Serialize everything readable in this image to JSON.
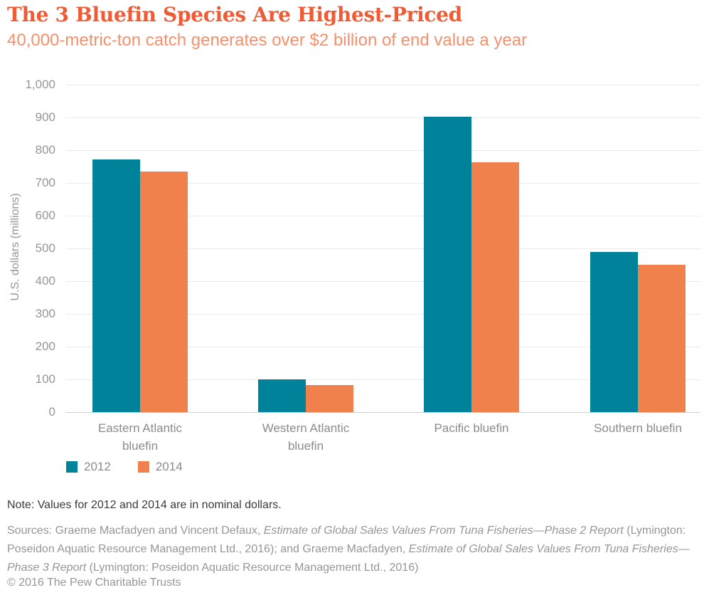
{
  "header": {
    "title": "The 3 Bluefin Species Are Highest-Priced",
    "subtitle": "40,000-metric-ton catch generates over $2 billion of end value a year"
  },
  "chart_data": {
    "type": "bar",
    "title": "The 3 Bluefin Species Are Highest-Priced",
    "subtitle": "40,000-metric-ton catch generates over $2 billion of end value a year",
    "categories": [
      "Eastern Atlantic bluefin",
      "Western Atlantic bluefin",
      "Pacific bluefin",
      "Southern bluefin"
    ],
    "series": [
      {
        "name": "2012",
        "color": "#00829B",
        "values": [
          772,
          101,
          902,
          490
        ]
      },
      {
        "name": "2014",
        "color": "#F0804C",
        "values": [
          735,
          83,
          763,
          450
        ]
      }
    ],
    "xlabel": "",
    "ylabel": "U.S. dollars (millions)",
    "ylim": [
      0,
      1000
    ],
    "ytick_values": [
      0,
      100,
      200,
      300,
      400,
      500,
      600,
      700,
      800,
      900,
      1000
    ],
    "ytick_labels": [
      "0",
      "100",
      "200",
      "300",
      "400",
      "500",
      "600",
      "700",
      "800",
      "900",
      "1,000"
    ],
    "grid": true,
    "legend_position": "bottom-left"
  },
  "legend": {
    "items": [
      {
        "label": "2012",
        "color": "#00829B"
      },
      {
        "label": "2014",
        "color": "#F0804C"
      }
    ]
  },
  "footer": {
    "note": "Note: Values for 2012 and 2014 are in nominal dollars.",
    "sources_segments": [
      {
        "text": "Sources: Graeme Macfadyen and Vincent Defaux, ",
        "italic": false
      },
      {
        "text": "Estimate of Global Sales Values From Tuna Fisheries—Phase 2 Report",
        "italic": true
      },
      {
        "text": " (Lymington: Poseidon Aquatic Resource Management Ltd., 2016); and Graeme Macfadyen, ",
        "italic": false
      },
      {
        "text": "Estimate of Global Sales Values From Tuna Fisheries—Phase 3 Report",
        "italic": true
      },
      {
        "text": " (Lymington: Poseidon Aquatic Resource Management Ltd., 2016)",
        "italic": false
      }
    ],
    "copyright": "© 2016 The Pew Charitable Trusts"
  },
  "colors": {
    "title": "#EE5B35",
    "subtitle": "#F4916C",
    "series_2012": "#00829B",
    "series_2014": "#F0804C",
    "axis_text": "#96969A",
    "category_text": "#8B8B8F",
    "legend_text": "#8A8A8E",
    "note_text": "#3A3A3C",
    "sources_text": "#96969A",
    "gridline": "#EAEAEA",
    "baseline": "#CFCFCF",
    "background": "#FFFFFF"
  }
}
